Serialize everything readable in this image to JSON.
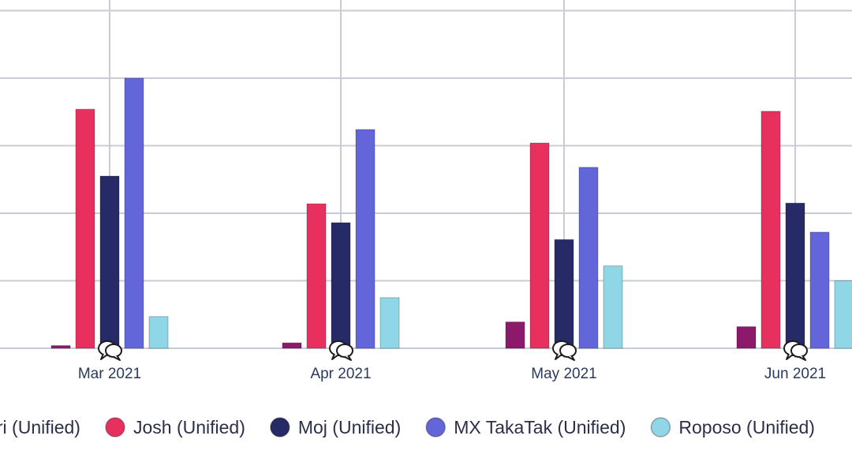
{
  "chart_data": {
    "type": "bar",
    "categories": [
      "Mar 2021",
      "Apr 2021",
      "May 2021",
      "Jun 2021"
    ],
    "series": [
      {
        "name": "Chingari (Unified)",
        "color": "#8b1a6b",
        "values": [
          0.4,
          0.8,
          3.9,
          3.2
        ]
      },
      {
        "name": "Josh (Unified)",
        "color": "#e8305f",
        "values": [
          35.4,
          21.4,
          30.4,
          35.1
        ]
      },
      {
        "name": "Moj (Unified)",
        "color": "#262a66",
        "values": [
          25.5,
          18.6,
          16.1,
          21.5
        ]
      },
      {
        "name": "MX TakaTak (Unified)",
        "color": "#6366d9",
        "values": [
          40.0,
          32.4,
          26.8,
          17.2
        ]
      },
      {
        "name": "Roposo (Unified)",
        "color": "#8fd6e6",
        "values": [
          4.7,
          7.5,
          12.2,
          10.0
        ]
      }
    ],
    "ylim": [
      0,
      50
    ],
    "grid": true,
    "legend_position": "bottom",
    "annotation_icon": "speech-bubbles-icon"
  }
}
